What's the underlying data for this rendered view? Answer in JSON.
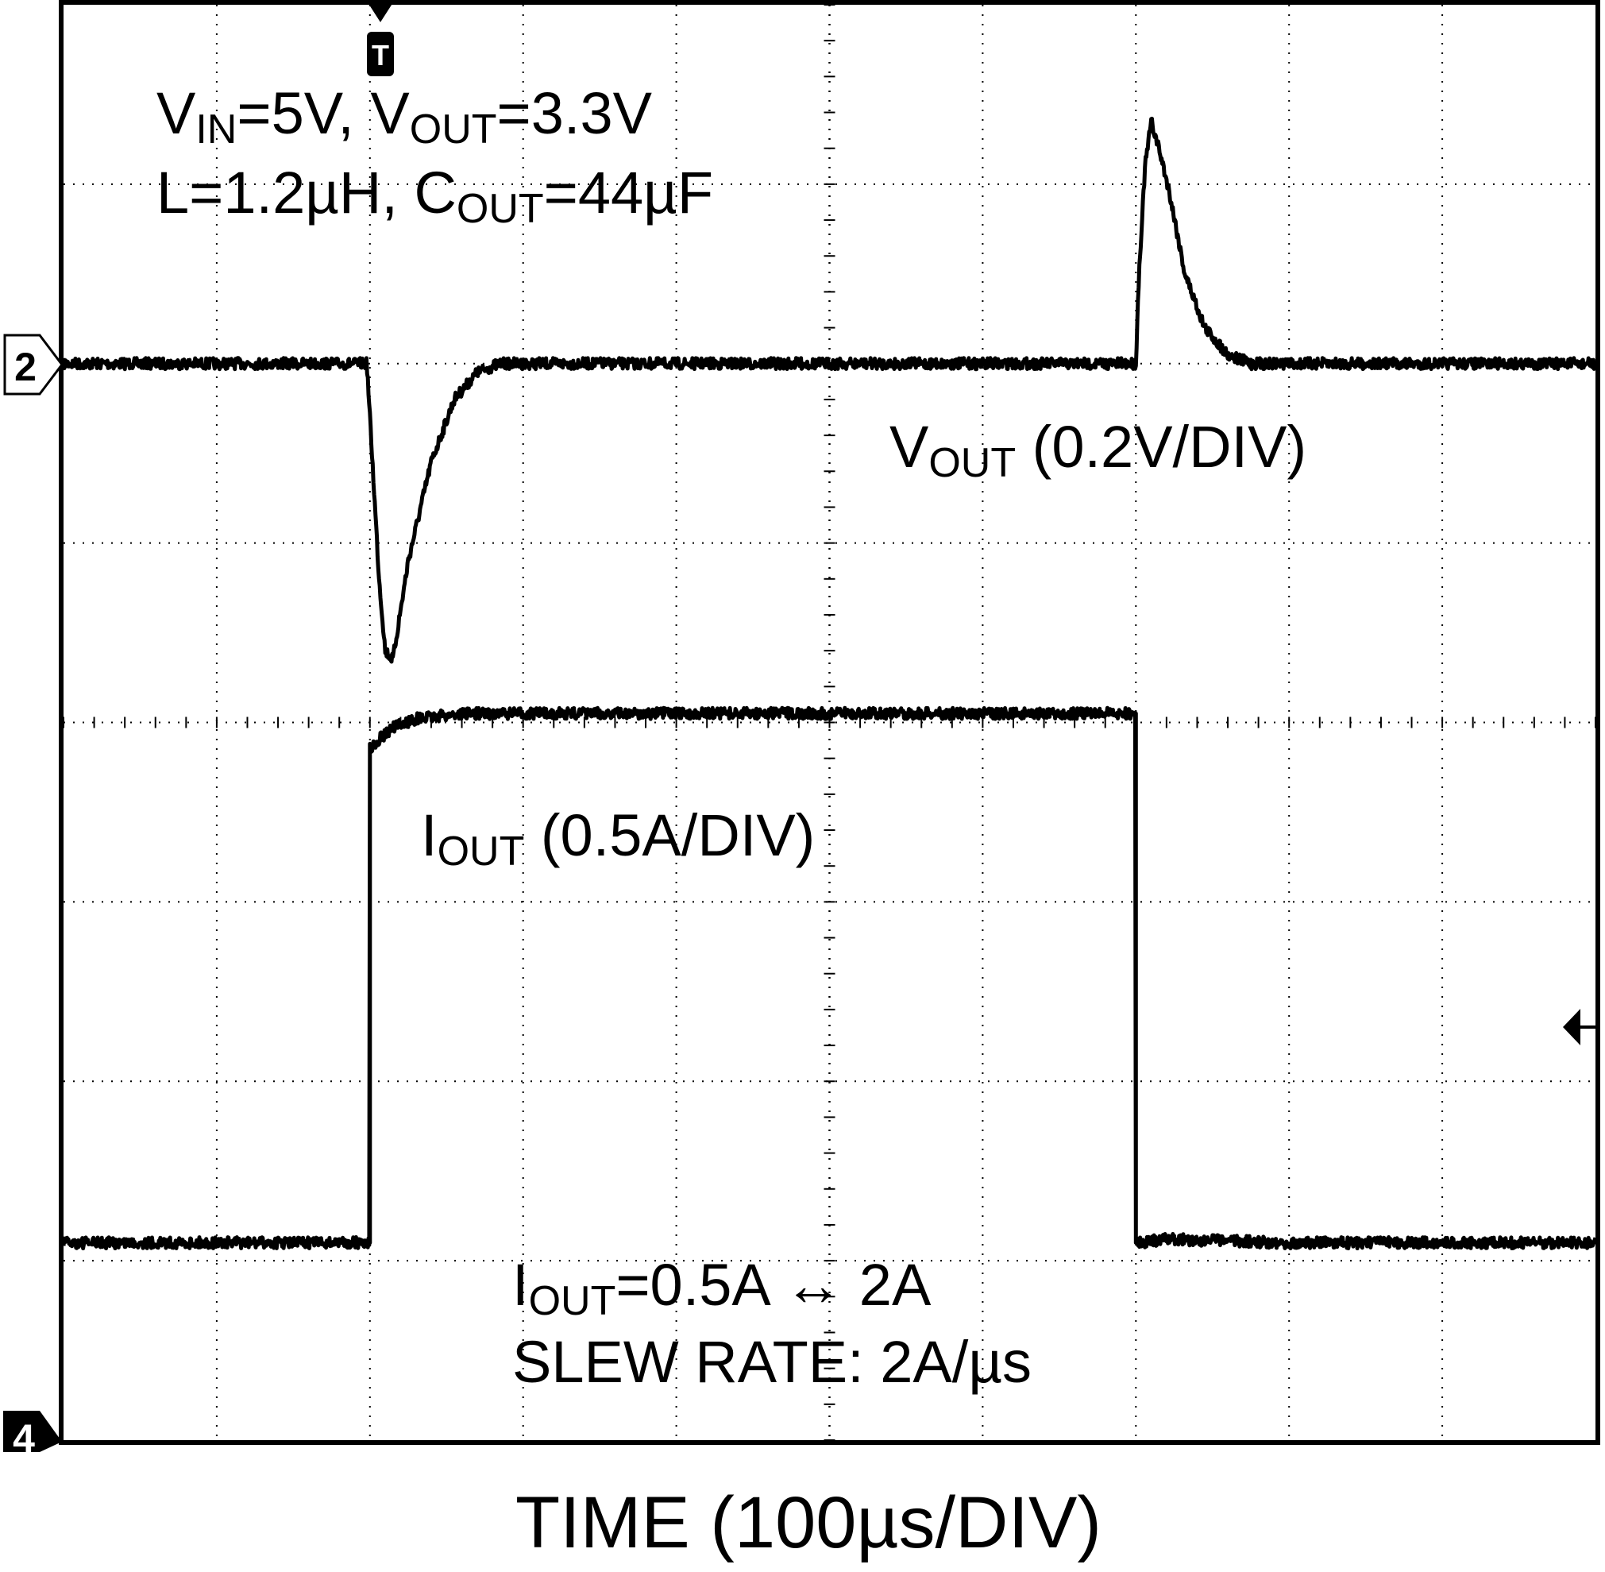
{
  "chart_data": {
    "type": "line",
    "title": "",
    "xlabel": "TIME (100µs/DIV)",
    "ylabel": "",
    "grid": true,
    "x_divisions": 10,
    "y_divisions": 8,
    "x_units": "div",
    "x_range": [
      0,
      10
    ],
    "y_range": [
      0,
      8
    ],
    "trigger_marker": "T",
    "channel_markers": [
      {
        "label": "2",
        "level_div": 6.0
      },
      {
        "label": "4",
        "level_div": 0.0
      }
    ],
    "annotations": {
      "conditions_line1": {
        "v": "V",
        "vsub": "IN",
        "a": "=5V, ",
        "v2": "V",
        "v2sub": "OUT",
        "b": "=3.3V"
      },
      "conditions_line2": {
        "a": "L=1.2µH, ",
        "c": "C",
        "csub": "OUT",
        "b": "=44µF"
      },
      "vout_label": {
        "main": "V",
        "sub": "OUT",
        "rest": " (0.2V/DIV)"
      },
      "iout_label": {
        "main": "I",
        "sub": "OUT",
        "rest": " (0.5A/DIV)"
      },
      "load_step": {
        "main": "I",
        "sub": "OUT",
        "rest": "=0.5A ↔ 2A"
      },
      "slew_rate": "SLEW RATE: 2A/µs"
    },
    "series": [
      {
        "name": "V",
        "volts_per_div": 0.2,
        "baseline_div": 6.0,
        "x": [
          0,
          1.98,
          2.02,
          2.06,
          2.1,
          2.15,
          2.25,
          2.4,
          2.55,
          2.7,
          2.85,
          3.0,
          4.0,
          5.0,
          6.0,
          7.0,
          7.02,
          7.06,
          7.1,
          7.15,
          7.22,
          7.32,
          7.45,
          7.6,
          7.75,
          7.9,
          8.0,
          9.0,
          10.0
        ],
        "y": [
          6.0,
          6.0,
          5.4,
          4.8,
          4.4,
          4.35,
          4.9,
          5.45,
          5.8,
          5.95,
          6.0,
          6.0,
          6.0,
          6.0,
          6.0,
          6.0,
          6.5,
          7.1,
          7.35,
          7.2,
          6.95,
          6.5,
          6.2,
          6.05,
          6.0,
          6.0,
          6.0,
          6.0,
          6.0
        ]
      },
      {
        "name": "I",
        "amps_per_div": 0.5,
        "baseline_div": 1.1,
        "x": [
          0,
          2.0,
          2.0,
          2.05,
          2.15,
          2.3,
          2.6,
          3.0,
          4.0,
          5.0,
          6.0,
          7.0,
          7.0,
          7.2,
          8.0,
          9.0,
          10.0
        ],
        "y": [
          1.1,
          1.1,
          3.85,
          3.9,
          3.97,
          4.02,
          4.05,
          4.05,
          4.05,
          4.05,
          4.05,
          4.05,
          1.1,
          1.12,
          1.1,
          1.1,
          1.1
        ]
      }
    ]
  }
}
